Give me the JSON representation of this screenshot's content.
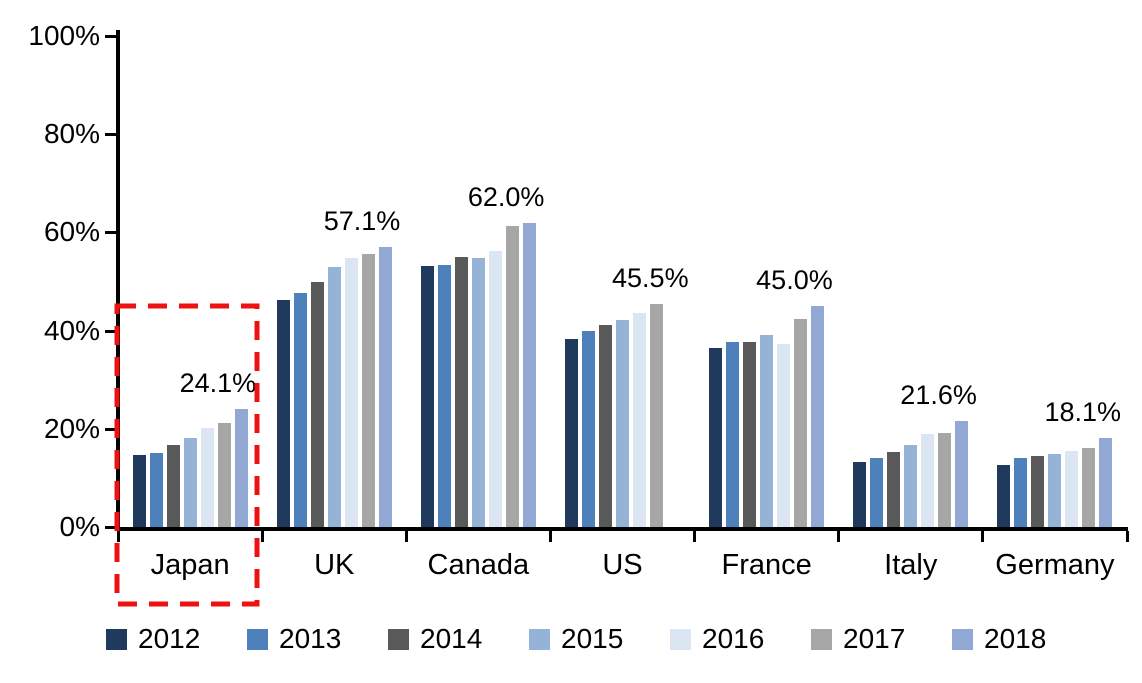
{
  "chart_data": {
    "type": "bar",
    "title": "",
    "categories": [
      "Japan",
      "UK",
      "Canada",
      "US",
      "France",
      "Italy",
      "Germany"
    ],
    "series": [
      {
        "name": "2012",
        "color": "#1F3A5C",
        "values": [
          14.7,
          46.2,
          53.2,
          38.3,
          36.5,
          13.3,
          12.6
        ]
      },
      {
        "name": "2013",
        "color": "#4E80BC",
        "values": [
          15.0,
          47.6,
          53.4,
          40.0,
          37.7,
          14.1,
          14.1
        ]
      },
      {
        "name": "2014",
        "color": "#595959",
        "values": [
          16.6,
          49.8,
          54.9,
          41.2,
          37.6,
          15.3,
          14.4
        ]
      },
      {
        "name": "2015",
        "color": "#95B3D7",
        "values": [
          18.1,
          53.0,
          54.7,
          42.2,
          39.2,
          16.8,
          14.8
        ]
      },
      {
        "name": "2016",
        "color": "#DCE6F2",
        "values": [
          20.1,
          54.7,
          56.2,
          43.6,
          37.3,
          18.9,
          15.5
        ]
      },
      {
        "name": "2017",
        "color": "#A6A6A6",
        "values": [
          21.1,
          55.7,
          61.3,
          45.5,
          42.3,
          19.1,
          16.0
        ]
      },
      {
        "name": "2018",
        "color": "#92A8D4",
        "values": [
          24.1,
          57.1,
          62.0,
          null,
          45.0,
          21.6,
          18.1
        ]
      }
    ],
    "callout_labels": [
      "24.1%",
      "57.1%",
      "62.0%",
      "45.5%",
      "45.0%",
      "21.6%",
      "18.1%"
    ],
    "y_axis": {
      "ticks": [
        "100%",
        "80%",
        "60%",
        "40%",
        "20%",
        "0%"
      ],
      "min": 0,
      "max": 100,
      "step": 20
    },
    "grid": false,
    "legend_position": "bottom",
    "legend_entries": [
      "2012",
      "2013",
      "2014",
      "2015",
      "2016",
      "2017",
      "2018"
    ],
    "highlight": {
      "category": "Japan",
      "style": "dashed-box",
      "color": "#EE1111"
    },
    "axis_color": "#000000",
    "background_color": "#FFFFFF"
  }
}
